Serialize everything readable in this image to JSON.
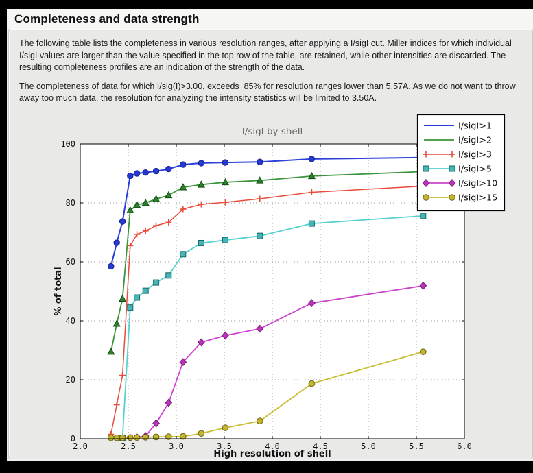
{
  "window": {
    "title": "Completeness and data strength"
  },
  "intro": {
    "paragraph1": "The following table lists the completeness in various resolution ranges, after applying a I/sigI cut. Miller indices for which individual I/sigI values are larger than the value specified in the top row of the table, are retained, while other intensities are discarded. The resulting completeness profiles are an indication of the strength of the data.",
    "paragraph2": "The completeness of data for which I/sig(I)>3.00, exceeds  85% for resolution ranges lower than 5.57A. As we do not want to throw away too much data, the resolution for analyzing the intensity statistics will be limited to 3.50A."
  },
  "chart_data": {
    "type": "line",
    "title": "I/sigI by shell",
    "xlabel": "High resolution of shell",
    "ylabel": "% of total",
    "xlim": [
      2.0,
      6.0
    ],
    "ylim": [
      0,
      100
    ],
    "xticks": [
      2.0,
      2.5,
      3.0,
      3.5,
      4.0,
      4.5,
      5.0,
      5.5,
      6.0
    ],
    "xtick_labels": [
      "2.0",
      "2.5",
      "3.0",
      "3.5",
      "4.0",
      "4.5",
      "5.0",
      "5.5",
      "6.0"
    ],
    "yticks": [
      0,
      20,
      40,
      60,
      80,
      100
    ],
    "ytick_labels": [
      "0",
      "20",
      "40",
      "60",
      "80",
      "100"
    ],
    "grid": true,
    "legend_position": "top-right",
    "colors": {
      "plot_bg": "#ffffff",
      "grid": "#9e9e9e",
      "spine": "#000000",
      "title": "#666666",
      "tick_label": "#111111",
      "axis_label": "#111111",
      "legend_bg": "#ffffff",
      "legend_border": "#000000"
    },
    "series": [
      {
        "name": "I/sigI>1",
        "color": "#2b3fd9",
        "marker": "circle",
        "marker_fill": "#2639d4",
        "marker_edge": "#16208a",
        "marker_size": 4.2,
        "line_width": 2.0,
        "legend_marker": false,
        "points": [
          [
            2.32,
            58.5
          ],
          [
            2.38,
            66.5
          ],
          [
            2.44,
            73.7
          ],
          [
            2.52,
            89.2
          ],
          [
            2.59,
            90.0
          ],
          [
            2.68,
            90.3
          ],
          [
            2.79,
            90.8
          ],
          [
            2.92,
            91.5
          ],
          [
            3.07,
            93.0
          ],
          [
            3.26,
            93.5
          ],
          [
            3.51,
            93.7
          ],
          [
            3.87,
            93.9
          ],
          [
            4.41,
            94.9
          ],
          [
            5.57,
            95.4
          ]
        ]
      },
      {
        "name": "I/sigI>2",
        "color": "#3a943a",
        "marker": "triangle",
        "marker_fill": "#2f7f2f",
        "marker_edge": "#0f4f0f",
        "marker_size": 5.0,
        "line_width": 1.8,
        "legend_marker": false,
        "points": [
          [
            2.32,
            29.5
          ],
          [
            2.38,
            39.0
          ],
          [
            2.44,
            47.5
          ],
          [
            2.52,
            77.5
          ],
          [
            2.59,
            79.3
          ],
          [
            2.68,
            80.0
          ],
          [
            2.79,
            81.3
          ],
          [
            2.92,
            82.6
          ],
          [
            3.07,
            85.3
          ],
          [
            3.26,
            86.2
          ],
          [
            3.51,
            87.0
          ],
          [
            3.87,
            87.6
          ],
          [
            4.41,
            89.1
          ],
          [
            5.57,
            90.6
          ]
        ]
      },
      {
        "name": "I/sigI>3",
        "color": "#e74c3c",
        "marker": "plus",
        "marker_fill": "#e74c3c",
        "marker_edge": "#e74c3c",
        "marker_size": 4.5,
        "line_width": 1.5,
        "legend_marker": true,
        "points": [
          [
            2.32,
            1.5
          ],
          [
            2.38,
            11.5
          ],
          [
            2.44,
            21.5
          ],
          [
            2.52,
            65.5
          ],
          [
            2.59,
            69.3
          ],
          [
            2.68,
            70.5
          ],
          [
            2.79,
            72.3
          ],
          [
            2.92,
            73.4
          ],
          [
            3.07,
            77.9
          ],
          [
            3.26,
            79.5
          ],
          [
            3.51,
            80.2
          ],
          [
            3.87,
            81.4
          ],
          [
            4.41,
            83.6
          ],
          [
            5.57,
            85.7
          ]
        ]
      },
      {
        "name": "I/sigI>5",
        "color": "#57d0d0",
        "marker": "square",
        "marker_fill": "#45b5b5",
        "marker_edge": "#176969",
        "marker_size": 4.0,
        "line_width": 1.8,
        "legend_marker": true,
        "points": [
          [
            2.44,
            0.3
          ],
          [
            2.52,
            44.5
          ],
          [
            2.59,
            47.9
          ],
          [
            2.68,
            50.2
          ],
          [
            2.79,
            53.0
          ],
          [
            2.92,
            55.4
          ],
          [
            3.07,
            62.6
          ],
          [
            3.26,
            66.4
          ],
          [
            3.51,
            67.4
          ],
          [
            3.87,
            68.8
          ],
          [
            4.41,
            73.0
          ],
          [
            5.57,
            75.6
          ]
        ]
      },
      {
        "name": "I/sigI>10",
        "color": "#cc44cc",
        "marker": "diamond",
        "marker_fill": "#bb33bb",
        "marker_edge": "#6f176f",
        "marker_size": 5.2,
        "line_width": 1.8,
        "legend_marker": true,
        "points": [
          [
            2.52,
            0.3
          ],
          [
            2.59,
            0.5
          ],
          [
            2.68,
            0.9
          ],
          [
            2.79,
            5.2
          ],
          [
            2.92,
            12.2
          ],
          [
            3.07,
            26.0
          ],
          [
            3.26,
            32.7
          ],
          [
            3.51,
            35.0
          ],
          [
            3.87,
            37.3
          ],
          [
            4.41,
            46.0
          ],
          [
            5.57,
            51.9
          ]
        ]
      },
      {
        "name": "I/sigI>15",
        "color": "#c9bd32",
        "marker": "circle",
        "marker_fill": "#c4b52e",
        "marker_edge": "#6b6214",
        "marker_size": 4.3,
        "line_width": 1.8,
        "legend_marker": true,
        "points": [
          [
            2.32,
            0.3
          ],
          [
            2.38,
            0.3
          ],
          [
            2.44,
            0.3
          ],
          [
            2.52,
            0.4
          ],
          [
            2.59,
            0.4
          ],
          [
            2.68,
            0.5
          ],
          [
            2.79,
            0.6
          ],
          [
            2.92,
            0.7
          ],
          [
            3.07,
            0.8
          ],
          [
            3.26,
            1.8
          ],
          [
            3.51,
            3.7
          ],
          [
            3.87,
            6.0
          ],
          [
            4.41,
            18.7
          ],
          [
            5.57,
            29.5
          ]
        ]
      }
    ]
  }
}
